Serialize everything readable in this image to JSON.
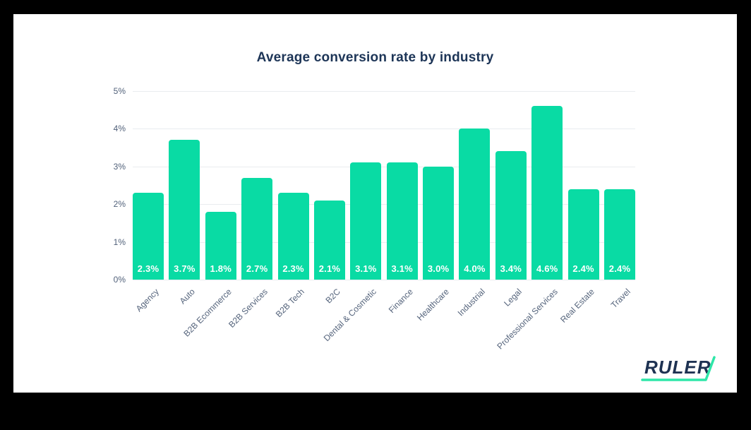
{
  "chart_data": {
    "type": "bar",
    "title": "Average conversion rate by industry",
    "categories": [
      "Agency",
      "Auto",
      "B2B Ecommerce",
      "B2B Services",
      "B2B Tech",
      "B2C",
      "Dental & Cosmetic",
      "Finance",
      "Healthcare",
      "Industrial",
      "Legal",
      "Professional Services",
      "Real Estate",
      "Travel"
    ],
    "values": [
      2.3,
      3.7,
      1.8,
      2.7,
      2.3,
      2.1,
      3.1,
      3.1,
      3.0,
      4.0,
      3.4,
      4.6,
      2.4,
      2.4
    ],
    "value_labels": [
      "2.3%",
      "3.7%",
      "1.8%",
      "2.7%",
      "2.3%",
      "2.1%",
      "3.1%",
      "3.1%",
      "3.0%",
      "4.0%",
      "3.4%",
      "4.6%",
      "2.4%",
      "2.4%"
    ],
    "xlabel": "",
    "ylabel": "",
    "y_ticks": [
      "5%",
      "4%",
      "3%",
      "2%",
      "1%",
      "0%"
    ],
    "ylim": [
      0,
      5
    ],
    "grid": true,
    "legend": false,
    "bar_color": "#09dba4",
    "value_label_color": "#ffffff",
    "title_color": "#1d3557",
    "axis_label_color": "#55647c",
    "gridline_color": "#e9ecef"
  },
  "logo": {
    "text": "RULER",
    "color": "#1e3252",
    "accent": "#2ee6a8"
  }
}
